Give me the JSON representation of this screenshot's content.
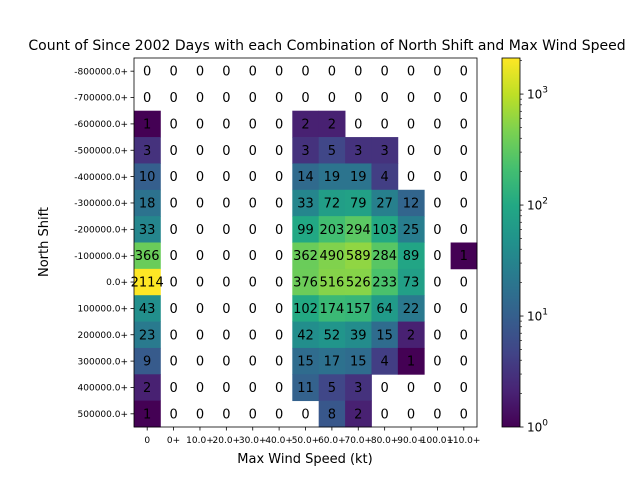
{
  "chart_data": {
    "type": "heatmap",
    "title": "Count of Since 2002 Days with each Combination of North Shift and Max Wind Speed",
    "xlabel": "Max Wind Speed (kt)",
    "ylabel": "North Shift",
    "x_categories": [
      "0",
      "0+",
      "10.0+",
      "20.0+",
      "30.0+",
      "40.0+",
      "50.0+",
      "60.0+",
      "70.0+",
      "80.0+",
      "90.0+",
      "100.0+",
      "110.0+"
    ],
    "y_categories": [
      "-800000.0+",
      "-700000.0+",
      "-600000.0+",
      "-500000.0+",
      "-400000.0+",
      "-300000.0+",
      "-200000.0+",
      "-100000.0+",
      "0.0+",
      "100000.0+",
      "200000.0+",
      "300000.0+",
      "400000.0+",
      "500000.0+"
    ],
    "values": [
      [
        0,
        0,
        0,
        0,
        0,
        0,
        0,
        0,
        0,
        0,
        0,
        0,
        0
      ],
      [
        0,
        0,
        0,
        0,
        0,
        0,
        0,
        0,
        0,
        0,
        0,
        0,
        0
      ],
      [
        1,
        0,
        0,
        0,
        0,
        0,
        2,
        2,
        0,
        0,
        0,
        0,
        0
      ],
      [
        3,
        0,
        0,
        0,
        0,
        0,
        3,
        5,
        3,
        3,
        0,
        0,
        0
      ],
      [
        10,
        0,
        0,
        0,
        0,
        0,
        14,
        19,
        19,
        4,
        0,
        0,
        0
      ],
      [
        18,
        0,
        0,
        0,
        0,
        0,
        33,
        72,
        79,
        27,
        12,
        0,
        0
      ],
      [
        33,
        0,
        0,
        0,
        0,
        0,
        99,
        203,
        294,
        103,
        25,
        0,
        0
      ],
      [
        366,
        0,
        0,
        0,
        0,
        0,
        362,
        490,
        589,
        284,
        89,
        0,
        1
      ],
      [
        2114,
        0,
        0,
        0,
        0,
        0,
        376,
        516,
        526,
        233,
        73,
        0,
        0
      ],
      [
        43,
        0,
        0,
        0,
        0,
        0,
        102,
        174,
        157,
        64,
        22,
        0,
        0
      ],
      [
        23,
        0,
        0,
        0,
        0,
        0,
        42,
        52,
        39,
        15,
        2,
        0,
        0
      ],
      [
        9,
        0,
        0,
        0,
        0,
        0,
        15,
        17,
        15,
        4,
        1,
        0,
        0
      ],
      [
        2,
        0,
        0,
        0,
        0,
        0,
        11,
        5,
        3,
        0,
        0,
        0,
        0
      ],
      [
        1,
        0,
        0,
        0,
        0,
        0,
        0,
        8,
        2,
        0,
        0,
        0,
        0
      ]
    ],
    "colorscale": "viridis",
    "color_scale_type": "log",
    "color_range": [
      1,
      2114
    ],
    "colorbar_ticks": [
      "10",
      "10",
      "10",
      "10"
    ],
    "colorbar_tick_exponents": [
      "0",
      "1",
      "2",
      "3"
    ],
    "colorbar_tick_values": [
      1,
      10,
      100,
      1000
    ],
    "zero_cells": "white"
  }
}
